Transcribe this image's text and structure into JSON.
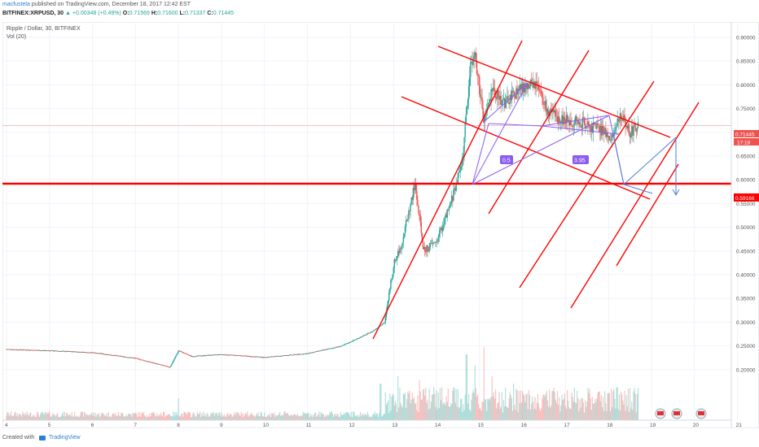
{
  "header": {
    "user": "macfustela",
    "published": "published on TradingView.com, December 18, 2017 12:42 EST",
    "symbol": "BITFINEX:XRPUSD, 30",
    "change": "▲ +0.00348 (+0.49%)",
    "o_label": "O:",
    "o_value": "0.71569",
    "h_label": "H:",
    "h_value": "0.71600",
    "l_label": "L:",
    "l_value": "0.71337",
    "c_label": "C:",
    "c_value": "0.71445"
  },
  "legend": {
    "title": "Ripple / Dollar, 30, BITFINEX",
    "volume": "Vol (20)"
  },
  "price_tags": {
    "last": "0.71445",
    "countdown": "17:18",
    "level": "0.59166"
  },
  "annotations": {
    "ratio_1": "0.5",
    "ratio_2": "3.95"
  },
  "footer": {
    "created_with": "Created with",
    "brand": "TradingView"
  },
  "colors": {
    "up": "#26a69a",
    "down": "#ef5350",
    "trendline": "#ff0000",
    "pattern": "#8a5cf0",
    "projection": "#4d7fd6",
    "grid": "#f0f3fa"
  },
  "event_icons": [
    "flag-icon",
    "flag-icon",
    "flag-icon"
  ],
  "chart_data": {
    "type": "candlestick",
    "x_ticks": [
      "4",
      "5",
      "6",
      "7",
      "8",
      "9",
      "10",
      "11",
      "12",
      "13",
      "14",
      "15",
      "16",
      "17",
      "18",
      "19",
      "20",
      "21"
    ],
    "y_ticks": [
      "0.90000",
      "0.85000",
      "0.80000",
      "0.75000",
      "0.70000",
      "0.65000",
      "0.60000",
      "0.55000",
      "0.50000",
      "0.45000",
      "0.40000",
      "0.35000",
      "0.30000",
      "0.25000",
      "0.20000"
    ],
    "ylim": [
      0.15,
      0.905
    ],
    "horizontal_line": 0.59166,
    "last_price": 0.71445,
    "price_path": [
      [
        4.0,
        0.243
      ],
      [
        5.0,
        0.24
      ],
      [
        6.0,
        0.236
      ],
      [
        7.0,
        0.224
      ],
      [
        7.8,
        0.205
      ],
      [
        8.0,
        0.24
      ],
      [
        8.3,
        0.228
      ],
      [
        9.0,
        0.232
      ],
      [
        10.0,
        0.226
      ],
      [
        11.0,
        0.234
      ],
      [
        11.8,
        0.25
      ],
      [
        12.5,
        0.28
      ],
      [
        12.8,
        0.3
      ],
      [
        13.0,
        0.42
      ],
      [
        13.2,
        0.47
      ],
      [
        13.5,
        0.59
      ],
      [
        13.7,
        0.45
      ],
      [
        14.0,
        0.47
      ],
      [
        14.3,
        0.54
      ],
      [
        14.6,
        0.64
      ],
      [
        14.8,
        0.85
      ],
      [
        14.9,
        0.86
      ],
      [
        15.1,
        0.72
      ],
      [
        15.3,
        0.79
      ],
      [
        15.6,
        0.76
      ],
      [
        15.9,
        0.79
      ],
      [
        16.3,
        0.8
      ],
      [
        16.6,
        0.74
      ],
      [
        17.0,
        0.725
      ],
      [
        17.4,
        0.72
      ],
      [
        17.8,
        0.705
      ],
      [
        18.1,
        0.69
      ],
      [
        18.3,
        0.74
      ],
      [
        18.5,
        0.7
      ],
      [
        18.7,
        0.714
      ]
    ],
    "volume_spikes": [
      [
        8.0,
        0.3
      ],
      [
        12.7,
        0.5
      ],
      [
        13.1,
        0.6
      ],
      [
        13.6,
        0.55
      ],
      [
        14.4,
        0.45
      ],
      [
        14.7,
        0.9
      ],
      [
        14.9,
        0.75
      ],
      [
        15.1,
        1.0
      ],
      [
        15.3,
        0.6
      ],
      [
        15.8,
        0.5
      ],
      [
        16.5,
        0.35
      ],
      [
        17.4,
        0.3
      ],
      [
        18.2,
        0.45
      ]
    ]
  }
}
